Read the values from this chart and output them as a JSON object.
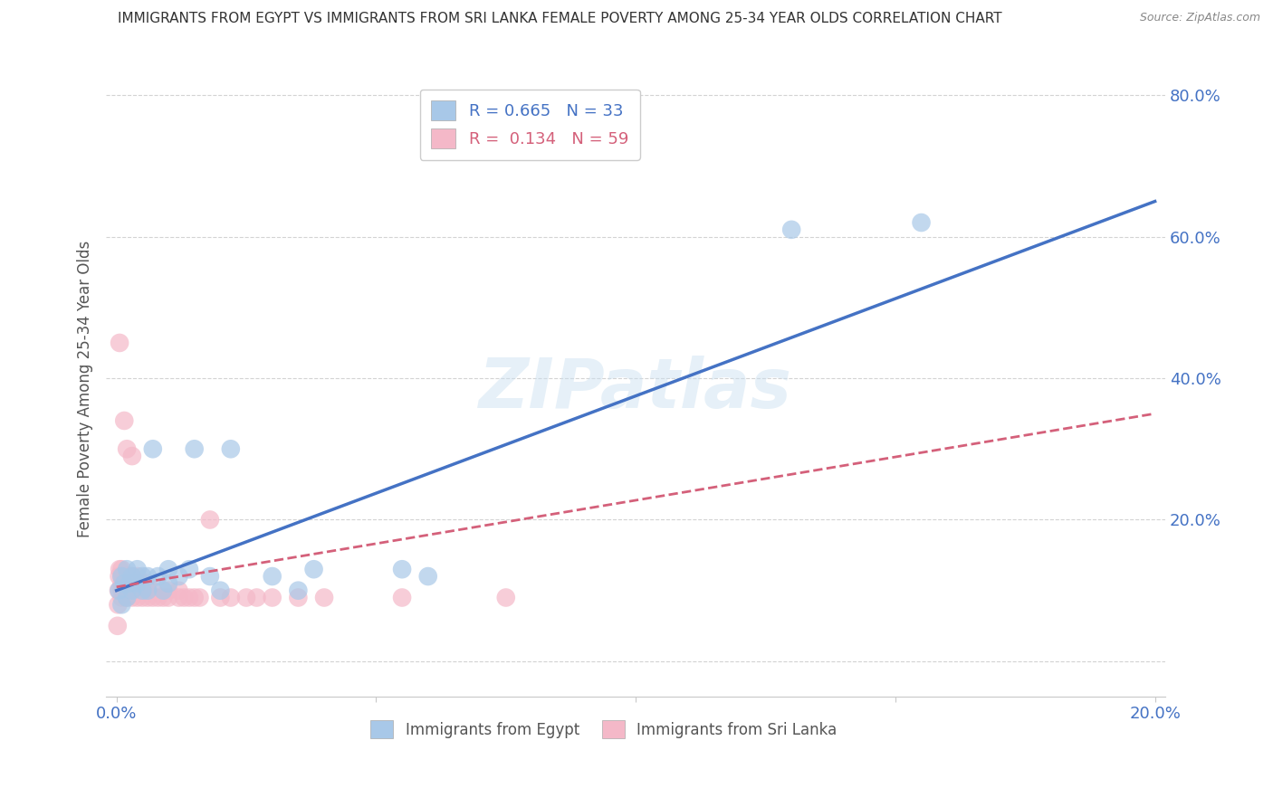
{
  "title": "IMMIGRANTS FROM EGYPT VS IMMIGRANTS FROM SRI LANKA FEMALE POVERTY AMONG 25-34 YEAR OLDS CORRELATION CHART",
  "source": "Source: ZipAtlas.com",
  "ylabel": "Female Poverty Among 25-34 Year Olds",
  "xlim": [
    -0.002,
    0.202
  ],
  "ylim": [
    -0.05,
    0.82
  ],
  "egypt_color": "#a8c8e8",
  "egypt_line_color": "#4472c4",
  "srilanka_color": "#f4b8c8",
  "srilanka_line_color": "#d4607a",
  "egypt_R": 0.665,
  "egypt_N": 33,
  "srilanka_R": 0.134,
  "srilanka_N": 59,
  "legend_label_egypt": "Immigrants from Egypt",
  "legend_label_srilanka": "Immigrants from Sri Lanka",
  "watermark": "ZIPatlas",
  "background_color": "#ffffff",
  "grid_color": "#c8c8c8",
  "title_color": "#333333",
  "axis_label_color": "#555555",
  "tick_color": "#4472c4",
  "egypt_line_x0": 0.0,
  "egypt_line_y0": 0.1,
  "egypt_line_x1": 0.2,
  "egypt_line_y1": 0.65,
  "srilanka_line_x0": 0.0,
  "srilanka_line_y0": 0.105,
  "srilanka_line_x1": 0.2,
  "srilanka_line_y1": 0.35,
  "egypt_scatter_x": [
    0.0005,
    0.001,
    0.001,
    0.0015,
    0.002,
    0.002,
    0.0025,
    0.003,
    0.003,
    0.004,
    0.004,
    0.005,
    0.005,
    0.006,
    0.006,
    0.007,
    0.008,
    0.009,
    0.01,
    0.01,
    0.012,
    0.014,
    0.015,
    0.018,
    0.02,
    0.022,
    0.03,
    0.035,
    0.038,
    0.055,
    0.06,
    0.13,
    0.155
  ],
  "egypt_scatter_y": [
    0.1,
    0.12,
    0.08,
    0.11,
    0.13,
    0.09,
    0.11,
    0.12,
    0.1,
    0.13,
    0.11,
    0.12,
    0.1,
    0.12,
    0.1,
    0.3,
    0.12,
    0.1,
    0.13,
    0.11,
    0.12,
    0.13,
    0.3,
    0.12,
    0.1,
    0.3,
    0.12,
    0.1,
    0.13,
    0.13,
    0.12,
    0.61,
    0.62
  ],
  "srilanka_scatter_x": [
    0.0002,
    0.0003,
    0.0004,
    0.0005,
    0.0006,
    0.0006,
    0.001,
    0.001,
    0.001,
    0.001,
    0.001,
    0.0012,
    0.0013,
    0.0014,
    0.0015,
    0.002,
    0.002,
    0.002,
    0.002,
    0.002,
    0.0022,
    0.0025,
    0.003,
    0.003,
    0.003,
    0.003,
    0.003,
    0.004,
    0.004,
    0.004,
    0.004,
    0.005,
    0.005,
    0.005,
    0.006,
    0.006,
    0.006,
    0.007,
    0.007,
    0.008,
    0.009,
    0.01,
    0.01,
    0.012,
    0.012,
    0.013,
    0.014,
    0.015,
    0.016,
    0.018,
    0.02,
    0.022,
    0.025,
    0.027,
    0.03,
    0.035,
    0.04,
    0.055,
    0.075
  ],
  "srilanka_scatter_y": [
    0.05,
    0.08,
    0.1,
    0.12,
    0.13,
    0.45,
    0.09,
    0.1,
    0.11,
    0.12,
    0.13,
    0.1,
    0.11,
    0.12,
    0.34,
    0.09,
    0.1,
    0.11,
    0.12,
    0.3,
    0.1,
    0.11,
    0.09,
    0.1,
    0.11,
    0.12,
    0.29,
    0.09,
    0.1,
    0.11,
    0.12,
    0.09,
    0.1,
    0.11,
    0.09,
    0.1,
    0.11,
    0.09,
    0.1,
    0.09,
    0.09,
    0.09,
    0.1,
    0.09,
    0.1,
    0.09,
    0.09,
    0.09,
    0.09,
    0.2,
    0.09,
    0.09,
    0.09,
    0.09,
    0.09,
    0.09,
    0.09,
    0.09,
    0.09
  ],
  "figsize": [
    14.06,
    8.92
  ],
  "dpi": 100
}
